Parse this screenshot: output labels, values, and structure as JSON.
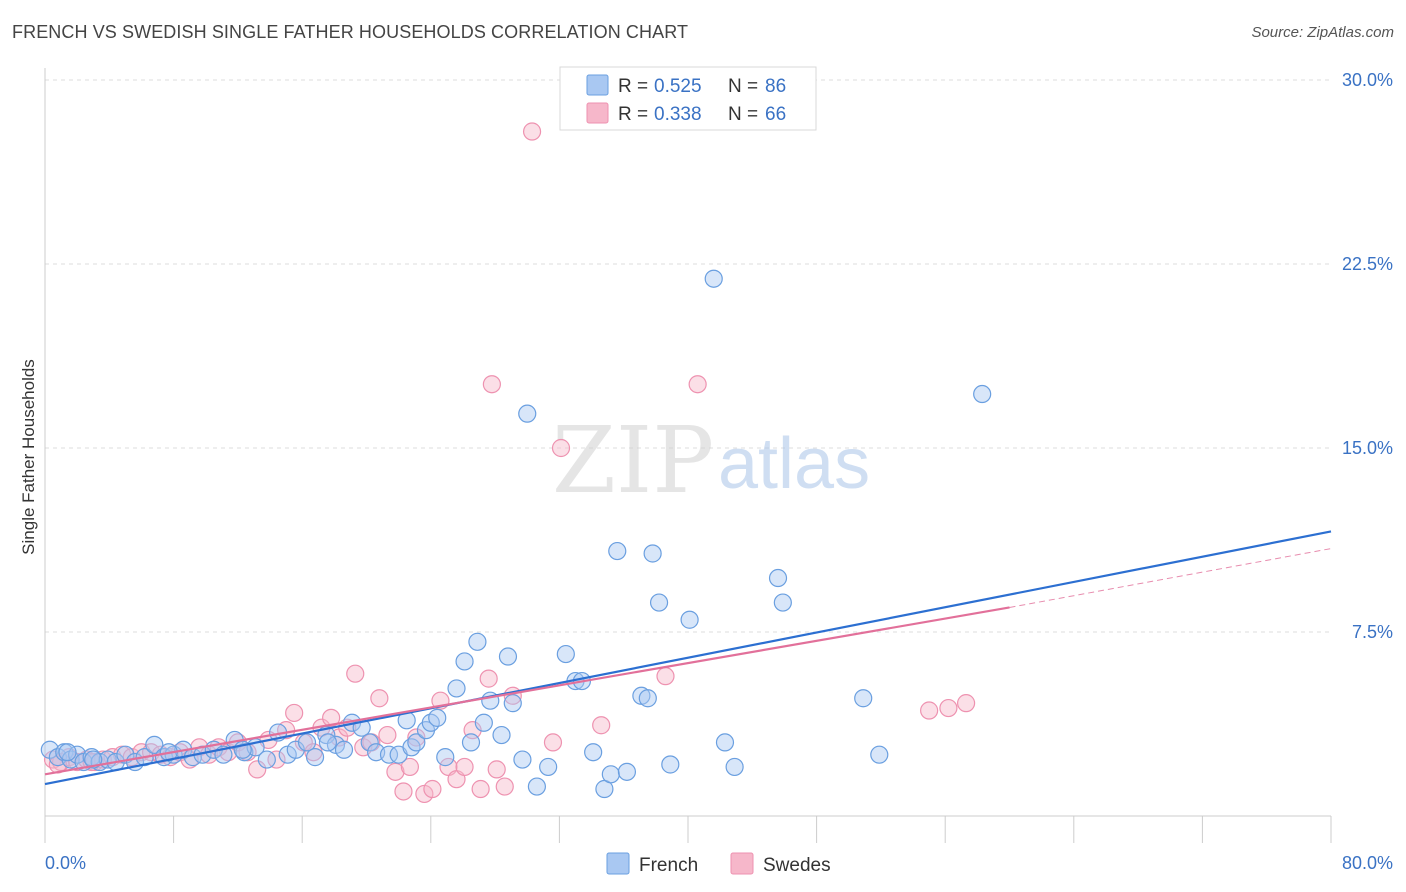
{
  "header": {
    "title": "FRENCH VS SWEDISH SINGLE FATHER HOUSEHOLDS CORRELATION CHART",
    "source": "Source: ZipAtlas.com"
  },
  "watermark": {
    "zip": "ZIP",
    "atlas": "atlas"
  },
  "legend": {
    "rows": [
      {
        "r_label": "R =",
        "r_value": "0.525",
        "n_label": "N =",
        "n_value": "86",
        "color": "#a9c8f2"
      },
      {
        "r_label": "R =",
        "r_value": "0.338",
        "n_label": "N =",
        "n_value": "66",
        "color": "#f6b7ca"
      }
    ]
  },
  "chart_data": {
    "type": "scatter",
    "title": "FRENCH VS SWEDISH SINGLE FATHER HOUSEHOLDS CORRELATION CHART",
    "ylabel": "Single Father Households",
    "xlim": [
      0,
      80
    ],
    "ylim": [
      0,
      30
    ],
    "x_tick_labels": [
      "0.0%",
      "80.0%"
    ],
    "y_ticks": [
      7.5,
      15.0,
      22.5,
      30.0
    ],
    "y_tick_labels": [
      "7.5%",
      "15.0%",
      "22.5%",
      "30.0%"
    ],
    "grid": true,
    "legend_position": "top-center",
    "series": [
      {
        "name": "French",
        "color": "#6a9fe0",
        "fill": "#a9c8f2",
        "trend": {
          "x": [
            0,
            80
          ],
          "y": [
            1.3,
            11.6
          ],
          "color": "#2c6fd1"
        },
        "points": [
          [
            0.3,
            2.7
          ],
          [
            0.8,
            2.4
          ],
          [
            1.2,
            2.6
          ],
          [
            1.6,
            2.3
          ],
          [
            2.0,
            2.5
          ],
          [
            2.4,
            2.2
          ],
          [
            2.9,
            2.4
          ],
          [
            3.4,
            2.2
          ],
          [
            3.9,
            2.3
          ],
          [
            4.4,
            2.2
          ],
          [
            5.0,
            2.5
          ],
          [
            5.6,
            2.2
          ],
          [
            6.2,
            2.4
          ],
          [
            6.8,
            2.9
          ],
          [
            7.4,
            2.4
          ],
          [
            8.0,
            2.5
          ],
          [
            8.6,
            2.7
          ],
          [
            9.2,
            2.4
          ],
          [
            9.8,
            2.5
          ],
          [
            10.5,
            2.7
          ],
          [
            11.1,
            2.5
          ],
          [
            11.8,
            3.1
          ],
          [
            12.4,
            2.6
          ],
          [
            13.1,
            2.8
          ],
          [
            13.8,
            2.3
          ],
          [
            14.5,
            3.4
          ],
          [
            15.1,
            2.5
          ],
          [
            15.6,
            2.7
          ],
          [
            16.3,
            3.0
          ],
          [
            16.8,
            2.4
          ],
          [
            17.5,
            3.3
          ],
          [
            18.1,
            2.9
          ],
          [
            18.6,
            2.7
          ],
          [
            19.1,
            3.8
          ],
          [
            19.7,
            3.6
          ],
          [
            20.2,
            3.0
          ],
          [
            20.6,
            2.6
          ],
          [
            21.4,
            2.5
          ],
          [
            22.0,
            2.5
          ],
          [
            22.5,
            3.9
          ],
          [
            22.8,
            2.8
          ],
          [
            23.1,
            3.0
          ],
          [
            23.7,
            3.5
          ],
          [
            24.0,
            3.8
          ],
          [
            24.4,
            4.0
          ],
          [
            24.9,
            2.4
          ],
          [
            25.6,
            5.2
          ],
          [
            26.1,
            6.3
          ],
          [
            26.5,
            3.0
          ],
          [
            26.9,
            7.1
          ],
          [
            27.3,
            3.8
          ],
          [
            27.7,
            4.7
          ],
          [
            28.4,
            3.3
          ],
          [
            28.8,
            6.5
          ],
          [
            29.1,
            4.6
          ],
          [
            29.7,
            2.3
          ],
          [
            30.0,
            16.4
          ],
          [
            30.6,
            1.2
          ],
          [
            31.3,
            2.0
          ],
          [
            32.4,
            6.6
          ],
          [
            33.0,
            5.5
          ],
          [
            33.4,
            5.5
          ],
          [
            34.1,
            2.6
          ],
          [
            34.8,
            1.1
          ],
          [
            35.2,
            1.7
          ],
          [
            35.6,
            10.8
          ],
          [
            36.2,
            1.8
          ],
          [
            37.1,
            4.9
          ],
          [
            37.5,
            4.8
          ],
          [
            37.8,
            10.7
          ],
          [
            38.2,
            8.7
          ],
          [
            38.9,
            2.1
          ],
          [
            40.1,
            8.0
          ],
          [
            41.6,
            21.9
          ],
          [
            42.3,
            3.0
          ],
          [
            42.9,
            2.0
          ],
          [
            45.6,
            9.7
          ],
          [
            45.9,
            8.7
          ],
          [
            50.9,
            4.8
          ],
          [
            51.9,
            2.5
          ],
          [
            58.3,
            17.2
          ],
          [
            1.4,
            2.6
          ],
          [
            3.0,
            2.3
          ],
          [
            7.7,
            2.6
          ],
          [
            12.3,
            2.7
          ],
          [
            17.6,
            3.0
          ]
        ]
      },
      {
        "name": "Swedes",
        "color": "#ee92b0",
        "fill": "#f6b7ca",
        "trend": {
          "x": [
            0,
            60
          ],
          "y": [
            1.7,
            8.5
          ],
          "color": "#e2709a"
        },
        "trend_extension": {
          "x": [
            60,
            80
          ],
          "y": [
            8.5,
            10.9
          ]
        },
        "points": [
          [
            0.5,
            2.3
          ],
          [
            1.0,
            2.2
          ],
          [
            1.5,
            2.4
          ],
          [
            2.0,
            2.2
          ],
          [
            2.6,
            2.3
          ],
          [
            3.1,
            2.2
          ],
          [
            3.6,
            2.3
          ],
          [
            4.2,
            2.4
          ],
          [
            4.8,
            2.5
          ],
          [
            5.4,
            2.4
          ],
          [
            6.0,
            2.6
          ],
          [
            6.6,
            2.6
          ],
          [
            7.2,
            2.5
          ],
          [
            7.8,
            2.4
          ],
          [
            8.4,
            2.6
          ],
          [
            9.0,
            2.3
          ],
          [
            9.6,
            2.8
          ],
          [
            10.2,
            2.5
          ],
          [
            10.8,
            2.8
          ],
          [
            11.4,
            2.6
          ],
          [
            12.0,
            3.0
          ],
          [
            12.6,
            2.6
          ],
          [
            13.2,
            1.9
          ],
          [
            13.9,
            3.1
          ],
          [
            14.4,
            2.3
          ],
          [
            15.0,
            3.5
          ],
          [
            15.5,
            4.2
          ],
          [
            16.1,
            3.0
          ],
          [
            16.7,
            2.6
          ],
          [
            17.2,
            3.6
          ],
          [
            17.8,
            4.0
          ],
          [
            18.3,
            3.2
          ],
          [
            18.8,
            3.6
          ],
          [
            19.3,
            5.8
          ],
          [
            19.8,
            2.8
          ],
          [
            20.3,
            3.0
          ],
          [
            20.8,
            4.8
          ],
          [
            21.3,
            3.3
          ],
          [
            21.8,
            1.8
          ],
          [
            22.3,
            1.0
          ],
          [
            22.7,
            2.0
          ],
          [
            23.1,
            3.2
          ],
          [
            23.6,
            0.9
          ],
          [
            24.1,
            1.1
          ],
          [
            24.6,
            4.7
          ],
          [
            25.1,
            2.0
          ],
          [
            25.6,
            1.5
          ],
          [
            26.1,
            2.0
          ],
          [
            26.6,
            3.5
          ],
          [
            27.1,
            1.1
          ],
          [
            27.6,
            5.6
          ],
          [
            28.1,
            1.9
          ],
          [
            28.6,
            1.2
          ],
          [
            29.1,
            4.9
          ],
          [
            30.3,
            27.9
          ],
          [
            31.6,
            3.0
          ],
          [
            32.1,
            15.0
          ],
          [
            34.6,
            3.7
          ],
          [
            38.6,
            5.7
          ],
          [
            40.6,
            17.6
          ],
          [
            27.8,
            17.6
          ],
          [
            55.0,
            4.3
          ],
          [
            56.2,
            4.4
          ],
          [
            57.3,
            4.6
          ],
          [
            0.8,
            2.1
          ],
          [
            2.9,
            2.2
          ]
        ]
      }
    ]
  }
}
